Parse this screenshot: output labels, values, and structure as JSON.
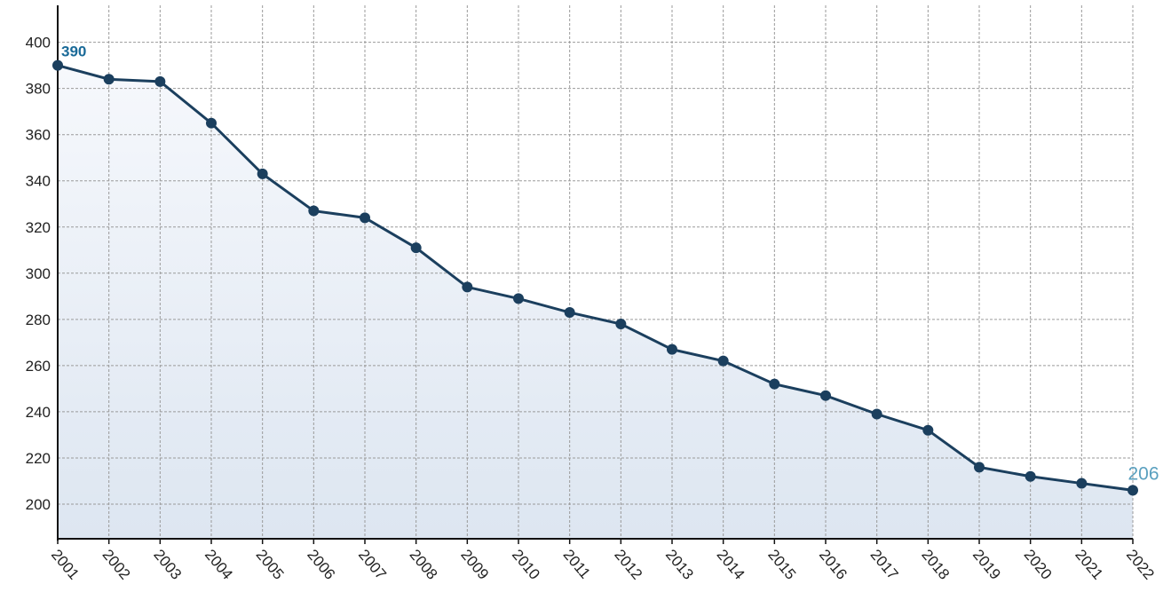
{
  "chart_data": {
    "type": "line",
    "categories": [
      "2001",
      "2002",
      "2003",
      "2004",
      "2005",
      "2006",
      "2007",
      "2008",
      "2009",
      "2010",
      "2011",
      "2012",
      "2013",
      "2014",
      "2015",
      "2016",
      "2017",
      "2018",
      "2019",
      "2020",
      "2021",
      "2022"
    ],
    "values": [
      390,
      384,
      383,
      365,
      343,
      327,
      324,
      311,
      294,
      289,
      283,
      278,
      267,
      262,
      252,
      247,
      239,
      232,
      216,
      212,
      209,
      206
    ],
    "value_labels": [
      "390",
      null,
      null,
      null,
      null,
      null,
      null,
      null,
      null,
      null,
      null,
      null,
      null,
      null,
      null,
      null,
      null,
      null,
      null,
      null,
      null,
      "206"
    ],
    "color": "#1b3f5e",
    "ylim": [
      185,
      416
    ],
    "yticks": [
      200,
      220,
      240,
      260,
      280,
      300,
      320,
      340,
      360,
      380,
      400
    ],
    "grid": true
  }
}
